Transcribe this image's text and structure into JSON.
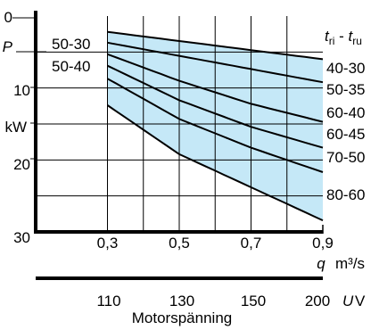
{
  "colors": {
    "band": "#c5e8f7",
    "line": "#000000",
    "grid": "#000000"
  },
  "chart_data": {
    "type": "line",
    "ylabel": "P",
    "ylabel_unit": "kW",
    "ylim": [
      0,
      30
    ],
    "y_ticks": [
      "0",
      "10",
      "20",
      "30"
    ],
    "y_unit_tick": "kW",
    "xlabel": "q",
    "xlabel_unit": "m³/s",
    "xlim": [
      0.1,
      0.9
    ],
    "x_ticks": [
      "0,3",
      "0,5",
      "0,7",
      "0,9"
    ],
    "x_tick_values": [
      0.3,
      0.5,
      0.7,
      0.9
    ],
    "x2_ticks": [
      "110",
      "130",
      "150",
      "200"
    ],
    "x2_label": "U",
    "x2_unit": "V",
    "x2_caption": "Motorspänning",
    "legend_title": "t_ri - t_ru",
    "legend_title_main": "t",
    "legend_title_sub1": "ri",
    "legend_title_sep": " - ",
    "legend_title_sub2": "ru",
    "left_labels": [
      "50-30",
      "50-40"
    ],
    "series": [
      {
        "name": "40-30",
        "x": [
          0.3,
          0.9
        ],
        "y": [
          2.2,
          6.0
        ]
      },
      {
        "name": "50-35",
        "x": [
          0.3,
          0.9
        ],
        "y": [
          3.7,
          9.2
        ]
      },
      {
        "name": "60-40",
        "x": [
          0.3,
          0.5,
          0.7,
          0.9
        ],
        "y": [
          5.3,
          9.0,
          12.2,
          14.7
        ]
      },
      {
        "name": "60-45",
        "x": [
          0.3,
          0.5,
          0.7,
          0.9
        ],
        "y": [
          6.9,
          11.7,
          15.4,
          18.3
        ]
      },
      {
        "name": "70-50",
        "x": [
          0.3,
          0.5,
          0.7,
          0.9
        ],
        "y": [
          8.7,
          14.3,
          18.3,
          21.7
        ]
      },
      {
        "name": "80-60",
        "x": [
          0.3,
          0.5,
          0.7,
          0.9
        ],
        "y": [
          12.4,
          19.2,
          23.8,
          28.4
        ]
      }
    ]
  }
}
